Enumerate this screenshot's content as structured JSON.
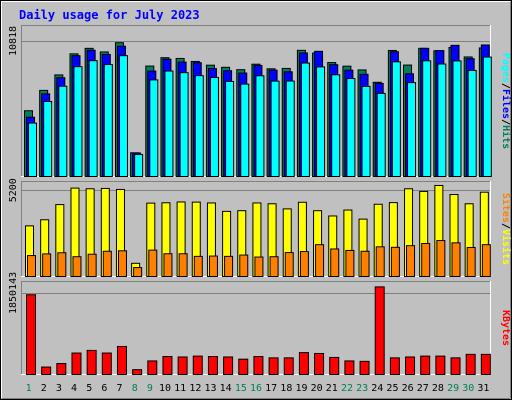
{
  "chart_data": [
    {
      "title": "Daily usage for July 2023",
      "type": "bar",
      "categories": [
        "1",
        "2",
        "3",
        "4",
        "5",
        "6",
        "7",
        "8",
        "9",
        "10",
        "11",
        "12",
        "13",
        "14",
        "15",
        "16",
        "17",
        "18",
        "19",
        "20",
        "21",
        "22",
        "23",
        "24",
        "25",
        "26",
        "27",
        "28",
        "29",
        "30",
        "31"
      ],
      "weekend_days": [
        "1",
        "8",
        "9",
        "15",
        "16",
        "22",
        "23",
        "29",
        "30"
      ],
      "panel": "hits-files-pages",
      "ylabel_parts": [
        "Pages",
        "/",
        "Files",
        "/",
        "Hits"
      ],
      "y_tick_label": "10818",
      "y_tick_value": 10818,
      "ylim": [
        0,
        12020
      ],
      "series": [
        {
          "name": "Hits",
          "color": "#00805c",
          "values": [
            5270,
            6900,
            8140,
            9830,
            10270,
            9980,
            10720,
            1900,
            8850,
            9520,
            9460,
            9220,
            8920,
            8750,
            8560,
            9000,
            8630,
            8660,
            10110,
            9890,
            9130,
            8840,
            8540,
            7550,
            10100,
            8930,
            10270,
            10070,
            10340,
            9580,
            10300
          ]
        },
        {
          "name": "Files",
          "color": "#0000ff",
          "values": [
            4750,
            6620,
            7920,
            9680,
            10120,
            9780,
            10440,
            1880,
            8450,
            9400,
            9170,
            9120,
            8650,
            8480,
            8290,
            8900,
            8520,
            8390,
            9900,
            10030,
            8960,
            8520,
            8190,
            7460,
            10000,
            8230,
            10270,
            10090,
            10510,
            9440,
            10540
          ]
        },
        {
          "name": "Pages",
          "color": "#00ffff",
          "values": [
            4280,
            6010,
            7230,
            8800,
            9280,
            8970,
            9680,
            1760,
            7740,
            8450,
            8320,
            8080,
            7930,
            7620,
            7400,
            8070,
            7640,
            7650,
            9090,
            8780,
            8150,
            7850,
            7220,
            6660,
            9190,
            7520,
            9270,
            9010,
            9260,
            8500,
            9570
          ]
        }
      ]
    },
    {
      "type": "bar",
      "categories": [
        "1",
        "2",
        "3",
        "4",
        "5",
        "6",
        "7",
        "8",
        "9",
        "10",
        "11",
        "12",
        "13",
        "14",
        "15",
        "16",
        "17",
        "18",
        "19",
        "20",
        "21",
        "22",
        "23",
        "24",
        "25",
        "26",
        "27",
        "28",
        "29",
        "30",
        "31"
      ],
      "panel": "visits-sites",
      "ylabel_parts": [
        "Sites",
        "/",
        "Visits"
      ],
      "y_tick_label": "5200",
      "y_tick_value": 5200,
      "ylim": [
        0,
        5700
      ],
      "series": [
        {
          "name": "Visits",
          "color": "#ffff00",
          "values": [
            3070,
            3440,
            4360,
            5360,
            5320,
            5340,
            5280,
            800,
            4450,
            4470,
            4520,
            4510,
            4460,
            3950,
            3990,
            4460,
            4410,
            4100,
            4500,
            3990,
            3670,
            4030,
            3480,
            4380,
            4480,
            5320,
            5160,
            5520,
            4970,
            4410,
            5110
          ]
        },
        {
          "name": "Sites",
          "color": "#ff8000",
          "values": [
            1270,
            1370,
            1440,
            1200,
            1350,
            1530,
            1560,
            540,
            1600,
            1380,
            1380,
            1220,
            1240,
            1220,
            1300,
            1180,
            1200,
            1450,
            1510,
            1930,
            1670,
            1580,
            1530,
            1800,
            1770,
            1870,
            2000,
            2180,
            2040,
            1760,
            1930
          ]
        }
      ]
    },
    {
      "type": "bar",
      "categories": [
        "1",
        "2",
        "3",
        "4",
        "5",
        "6",
        "7",
        "8",
        "9",
        "10",
        "11",
        "12",
        "13",
        "14",
        "15",
        "16",
        "17",
        "18",
        "19",
        "20",
        "21",
        "22",
        "23",
        "24",
        "25",
        "26",
        "27",
        "28",
        "29",
        "30",
        "31"
      ],
      "panel": "kbytes",
      "ylabel_parts": [
        "KBytes"
      ],
      "y_tick_label": "1850143",
      "y_tick_value": 1850143,
      "ylim": [
        0,
        2100000
      ],
      "series": [
        {
          "name": "KBytes",
          "color": "#ff0000",
          "values": [
            1820000,
            170000,
            250000,
            490000,
            550000,
            490000,
            640000,
            110000,
            310000,
            410000,
            400000,
            420000,
            410000,
            400000,
            350000,
            410000,
            380000,
            380000,
            500000,
            480000,
            390000,
            310000,
            300000,
            2000000,
            380000,
            400000,
            420000,
            420000,
            380000,
            460000,
            460000
          ]
        }
      ]
    }
  ]
}
